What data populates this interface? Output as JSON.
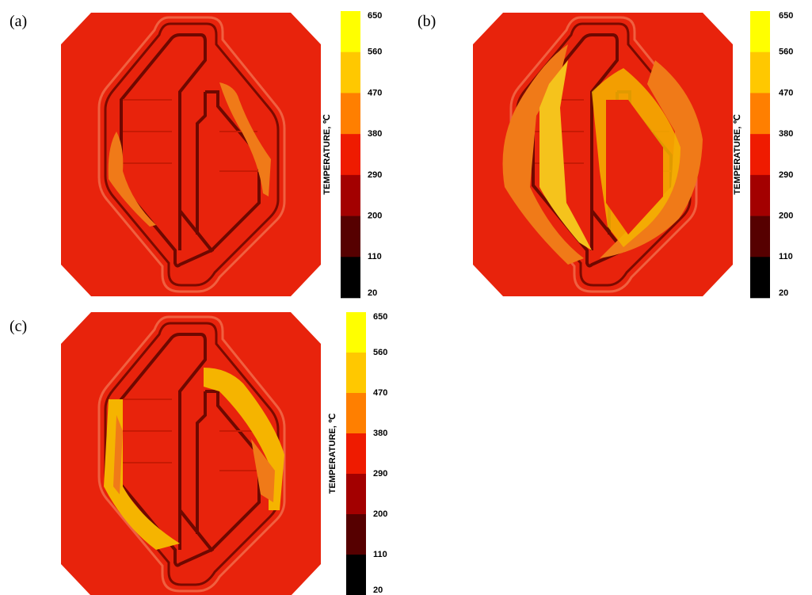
{
  "panels": [
    {
      "label": "(a)",
      "colorbar": {
        "title": "TEMPERATURE, ℃",
        "ticks": [
          650,
          560,
          470,
          380,
          290,
          200,
          110,
          20
        ]
      }
    },
    {
      "label": "(b)",
      "colorbar": {
        "title": "TEMPERATURE, ℃",
        "ticks": [
          650,
          560,
          470,
          380,
          290,
          200,
          110,
          20
        ]
      }
    },
    {
      "label": "(c)",
      "colorbar": {
        "title": "TEMPERATURE, ℃",
        "ticks": [
          650,
          560,
          470,
          380,
          290,
          200,
          110,
          20
        ]
      }
    }
  ],
  "colorbar_colors": [
    "#ffff00",
    "#ffc800",
    "#ff7f00",
    "#ef1b00",
    "#a30000",
    "#560000",
    "#000000"
  ]
}
